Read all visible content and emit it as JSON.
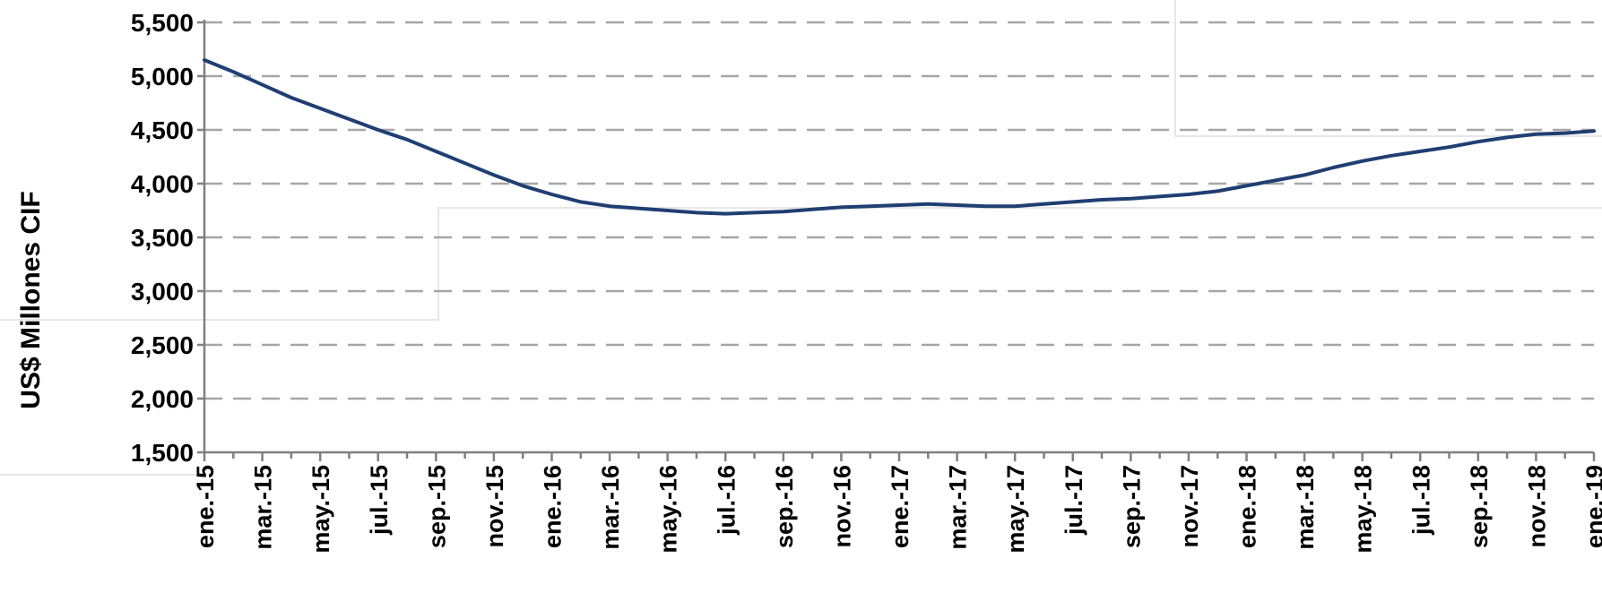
{
  "chart_data": {
    "type": "line",
    "ylabel": "US$ Millones CIF",
    "ylim": [
      1500,
      5500
    ],
    "yticks": [
      1500,
      2000,
      2500,
      3000,
      3500,
      4000,
      4500,
      5000,
      5500
    ],
    "ytick_labels": [
      "1,500",
      "2,000",
      "2,500",
      "3,000",
      "3,500",
      "4,000",
      "4,500",
      "5,000",
      "5,500"
    ],
    "xtick_labels": [
      "ene.-15",
      "mar.-15",
      "may.-15",
      "jul.-15",
      "sep.-15",
      "nov.-15",
      "ene.-16",
      "mar.-16",
      "may.-16",
      "jul.-16",
      "sep.-16",
      "nov.-16",
      "ene.-17",
      "mar.-17",
      "may.-17",
      "jul.-17",
      "sep.-17",
      "nov.-17",
      "ene.-18",
      "mar.-18",
      "may.-18",
      "jul.-18",
      "sep.-18",
      "nov.-18",
      "ene.-19"
    ],
    "grid": true,
    "series": [
      {
        "color": "#1f3f73",
        "x": [
          "ene.-15",
          "feb.-15",
          "mar.-15",
          "abr.-15",
          "may.-15",
          "jun.-15",
          "jul.-15",
          "ago.-15",
          "sep.-15",
          "oct.-15",
          "nov.-15",
          "dic.-15",
          "ene.-16",
          "feb.-16",
          "mar.-16",
          "abr.-16",
          "may.-16",
          "jun.-16",
          "jul.-16",
          "ago.-16",
          "sep.-16",
          "oct.-16",
          "nov.-16",
          "dic.-16",
          "ene.-17",
          "feb.-17",
          "mar.-17",
          "abr.-17",
          "may.-17",
          "jun.-17",
          "jul.-17",
          "ago.-17",
          "sep.-17",
          "oct.-17",
          "nov.-17",
          "dic.-17",
          "ene.-18",
          "feb.-18",
          "mar.-18",
          "abr.-18",
          "may.-18",
          "jun.-18",
          "jul.-18",
          "ago.-18",
          "sep.-18",
          "oct.-18",
          "nov.-18",
          "dic.-18",
          "ene.-19"
        ],
        "values": [
          5150,
          5040,
          4920,
          4800,
          4700,
          4600,
          4500,
          4410,
          4300,
          4190,
          4080,
          3980,
          3900,
          3830,
          3790,
          3770,
          3750,
          3730,
          3720,
          3730,
          3740,
          3760,
          3780,
          3790,
          3800,
          3810,
          3800,
          3790,
          3790,
          3810,
          3830,
          3850,
          3860,
          3880,
          3900,
          3930,
          3980,
          4030,
          4080,
          4150,
          4210,
          4260,
          4300,
          4340,
          4390,
          4430,
          4460,
          4470,
          4490
        ]
      }
    ]
  }
}
